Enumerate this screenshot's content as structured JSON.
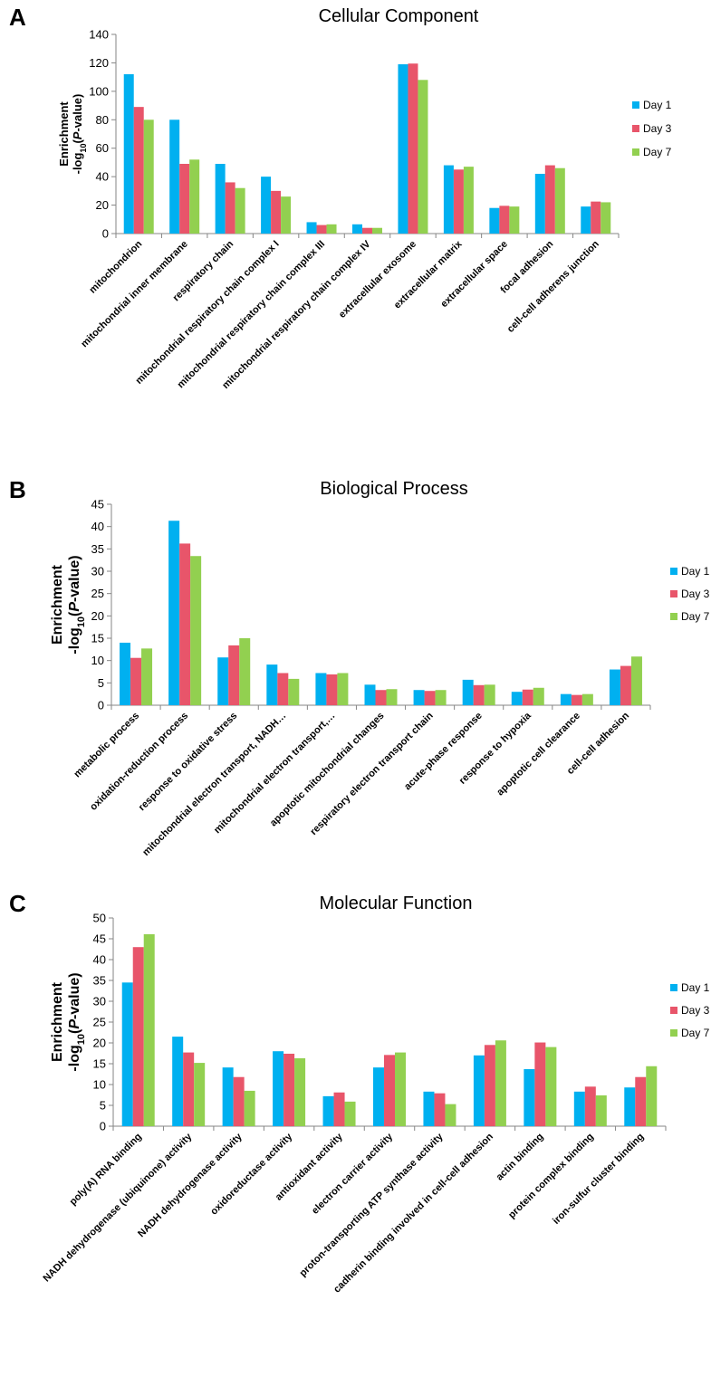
{
  "colors": {
    "Day 1": "#00b0f0",
    "Day 3": "#e8556a",
    "Day 7": "#92d050"
  },
  "chart_data": [
    {
      "panel": "A",
      "type": "bar",
      "title": "Cellular Component",
      "ylabel_line1": "Enrichment",
      "ylabel_line2_prefix": "-log",
      "ylabel_line2_sub": "10",
      "ylabel_line2_open": "(",
      "ylabel_line2_italic": "P",
      "ylabel_line2_suffix": "-value)",
      "ylim": [
        0,
        140
      ],
      "yticks": [
        0,
        20,
        40,
        60,
        80,
        100,
        120,
        140
      ],
      "legend_position": "right",
      "categories": [
        "mitochondrion",
        "mitochondrial inner membrane",
        "respiratory chain",
        "mitochondrial respiratory chain complex I",
        "mitochondrial respiratory chain complex III",
        "mitochondrial respiratory chain complex IV",
        "extracellular exosome",
        "extracellular matrix",
        "extracellular space",
        "focal adhesion",
        "cell-cell adherens junction"
      ],
      "series": [
        {
          "name": "Day 1",
          "values": [
            112,
            80,
            49,
            40,
            8,
            6.5,
            119,
            48,
            18,
            42,
            19
          ]
        },
        {
          "name": "Day 3",
          "values": [
            89,
            49,
            36,
            30,
            6,
            4,
            119.5,
            45,
            19.5,
            48,
            22.5
          ]
        },
        {
          "name": "Day 7",
          "values": [
            80,
            52,
            32,
            26,
            6.5,
            4,
            108,
            47,
            19,
            46,
            22
          ]
        }
      ]
    },
    {
      "panel": "B",
      "type": "bar",
      "title": "Biological Process",
      "ylabel_line1": "Enrichment",
      "ylabel_line2_prefix": "-log",
      "ylabel_line2_sub": "10",
      "ylabel_line2_open": "(",
      "ylabel_line2_italic": "P",
      "ylabel_line2_suffix": "-value)",
      "ylim": [
        0,
        45
      ],
      "yticks": [
        0,
        5,
        10,
        15,
        20,
        25,
        30,
        35,
        40,
        45
      ],
      "legend_position": "right",
      "categories": [
        "metabolic process",
        "oxidation-reduction process",
        "response to oxidative stress",
        "mitochondrial electron transport, NADH…",
        "mitochondrial electron transport,…",
        "apoptotic mitochondrial changes",
        "respiratory electron transport chain",
        "acute-phase response",
        "response to hypoxia",
        "apoptotic cell clearance",
        "cell-cell adhesion"
      ],
      "series": [
        {
          "name": "Day 1",
          "values": [
            14,
            41.3,
            10.7,
            9.1,
            7.2,
            4.6,
            3.4,
            5.7,
            3,
            2.5,
            8
          ]
        },
        {
          "name": "Day 3",
          "values": [
            10.6,
            36.2,
            13.4,
            7.2,
            6.9,
            3.4,
            3.2,
            4.5,
            3.5,
            2.3,
            8.8
          ]
        },
        {
          "name": "Day 7",
          "values": [
            12.7,
            33.4,
            15,
            5.9,
            7.2,
            3.6,
            3.4,
            4.6,
            3.9,
            2.5,
            10.9
          ]
        }
      ]
    },
    {
      "panel": "C",
      "type": "bar",
      "title": "Molecular Function",
      "ylabel_line1": "Enrichment",
      "ylabel_line2_prefix": "-log",
      "ylabel_line2_sub": "10",
      "ylabel_line2_open": "(",
      "ylabel_line2_italic": "P",
      "ylabel_line2_suffix": "-value)",
      "ylim": [
        0,
        50
      ],
      "yticks": [
        0,
        5,
        10,
        15,
        20,
        25,
        30,
        35,
        40,
        45,
        50
      ],
      "legend_position": "right",
      "categories": [
        "poly(A) RNA binding",
        "NADH dehydrogenase (ubiquinone) activity",
        "NADH dehydrogenase activity",
        "oxidoreductase activity",
        "antioxidant activity",
        "electron carrier activity",
        "proton-transporting ATP synthase activity",
        "cadherin binding involved in cell-cell adhesion",
        "actin binding",
        "protein complex binding",
        "iron-sulfur cluster binding"
      ],
      "series": [
        {
          "name": "Day 1",
          "values": [
            34.5,
            21.5,
            14.1,
            18,
            7.2,
            14.1,
            8.3,
            17,
            13.7,
            8.3,
            9.3
          ]
        },
        {
          "name": "Day 3",
          "values": [
            43,
            17.7,
            11.8,
            17.4,
            8.1,
            17.1,
            7.9,
            19.5,
            20.1,
            9.5,
            11.8
          ]
        },
        {
          "name": "Day 7",
          "values": [
            46.1,
            15.2,
            8.5,
            16.3,
            5.9,
            17.7,
            5.3,
            20.6,
            19,
            7.4,
            14.4
          ]
        }
      ]
    }
  ]
}
